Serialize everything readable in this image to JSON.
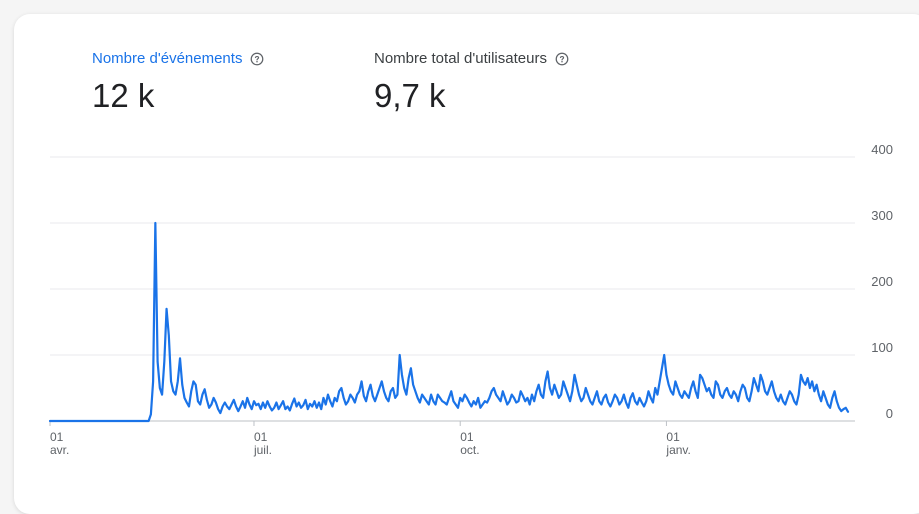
{
  "metrics": [
    {
      "label": "Nombre d'événements",
      "value": "12 k",
      "color": "#1a73e8",
      "help_icon": "help-circle-icon"
    },
    {
      "label": "Nombre total d'utilisateurs",
      "value": "9,7 k",
      "color": "#3c4043",
      "help_icon": "help-circle-icon"
    }
  ],
  "chart_data": {
    "type": "line",
    "ylim": [
      0,
      400
    ],
    "y_ticks": [
      "0",
      "100",
      "200",
      "300",
      "400"
    ],
    "x_ticks": [
      {
        "day": "01",
        "month": "avr."
      },
      {
        "day": "01",
        "month": "juil."
      },
      {
        "day": "01",
        "month": "oct."
      },
      {
        "day": "01",
        "month": "janv."
      }
    ],
    "x_tick_days": [
      0,
      91,
      183,
      275
    ],
    "series": [
      {
        "color": "#1a73e8",
        "points": [
          [
            0,
            0
          ],
          [
            44,
            0
          ],
          [
            45,
            10
          ],
          [
            46,
            60
          ],
          [
            47,
            300
          ],
          [
            48,
            90
          ],
          [
            49,
            50
          ],
          [
            50,
            40
          ],
          [
            51,
            90
          ],
          [
            52,
            170
          ],
          [
            53,
            130
          ],
          [
            54,
            60
          ],
          [
            55,
            45
          ],
          [
            56,
            40
          ],
          [
            57,
            60
          ],
          [
            58,
            95
          ],
          [
            59,
            55
          ],
          [
            60,
            35
          ],
          [
            61,
            28
          ],
          [
            62,
            22
          ],
          [
            63,
            45
          ],
          [
            64,
            60
          ],
          [
            65,
            55
          ],
          [
            66,
            30
          ],
          [
            67,
            25
          ],
          [
            68,
            40
          ],
          [
            69,
            48
          ],
          [
            70,
            32
          ],
          [
            71,
            20
          ],
          [
            72,
            25
          ],
          [
            73,
            35
          ],
          [
            74,
            28
          ],
          [
            75,
            18
          ],
          [
            76,
            12
          ],
          [
            77,
            22
          ],
          [
            78,
            28
          ],
          [
            79,
            22
          ],
          [
            80,
            18
          ],
          [
            81,
            25
          ],
          [
            82,
            32
          ],
          [
            83,
            22
          ],
          [
            84,
            15
          ],
          [
            85,
            22
          ],
          [
            86,
            30
          ],
          [
            87,
            20
          ],
          [
            88,
            35
          ],
          [
            89,
            25
          ],
          [
            90,
            18
          ],
          [
            91,
            30
          ],
          [
            92,
            24
          ],
          [
            93,
            26
          ],
          [
            94,
            18
          ],
          [
            95,
            28
          ],
          [
            96,
            20
          ],
          [
            97,
            30
          ],
          [
            98,
            22
          ],
          [
            99,
            16
          ],
          [
            100,
            20
          ],
          [
            101,
            28
          ],
          [
            102,
            18
          ],
          [
            103,
            24
          ],
          [
            104,
            30
          ],
          [
            105,
            18
          ],
          [
            106,
            22
          ],
          [
            107,
            16
          ],
          [
            108,
            26
          ],
          [
            109,
            34
          ],
          [
            110,
            22
          ],
          [
            111,
            28
          ],
          [
            112,
            20
          ],
          [
            113,
            24
          ],
          [
            114,
            32
          ],
          [
            115,
            18
          ],
          [
            116,
            26
          ],
          [
            117,
            22
          ],
          [
            118,
            30
          ],
          [
            119,
            20
          ],
          [
            120,
            28
          ],
          [
            121,
            18
          ],
          [
            122,
            35
          ],
          [
            123,
            25
          ],
          [
            124,
            40
          ],
          [
            125,
            30
          ],
          [
            126,
            22
          ],
          [
            127,
            35
          ],
          [
            128,
            30
          ],
          [
            129,
            45
          ],
          [
            130,
            50
          ],
          [
            131,
            35
          ],
          [
            132,
            25
          ],
          [
            133,
            30
          ],
          [
            134,
            40
          ],
          [
            135,
            35
          ],
          [
            136,
            28
          ],
          [
            137,
            40
          ],
          [
            138,
            45
          ],
          [
            139,
            60
          ],
          [
            140,
            38
          ],
          [
            141,
            30
          ],
          [
            142,
            45
          ],
          [
            143,
            55
          ],
          [
            144,
            38
          ],
          [
            145,
            30
          ],
          [
            146,
            40
          ],
          [
            147,
            50
          ],
          [
            148,
            60
          ],
          [
            149,
            45
          ],
          [
            150,
            35
          ],
          [
            151,
            30
          ],
          [
            152,
            45
          ],
          [
            153,
            50
          ],
          [
            154,
            35
          ],
          [
            155,
            40
          ],
          [
            156,
            100
          ],
          [
            157,
            70
          ],
          [
            158,
            50
          ],
          [
            159,
            40
          ],
          [
            160,
            65
          ],
          [
            161,
            80
          ],
          [
            162,
            55
          ],
          [
            163,
            45
          ],
          [
            164,
            35
          ],
          [
            165,
            28
          ],
          [
            166,
            40
          ],
          [
            167,
            35
          ],
          [
            168,
            30
          ],
          [
            169,
            25
          ],
          [
            170,
            40
          ],
          [
            171,
            30
          ],
          [
            172,
            25
          ],
          [
            173,
            40
          ],
          [
            174,
            35
          ],
          [
            175,
            30
          ],
          [
            176,
            28
          ],
          [
            177,
            25
          ],
          [
            178,
            35
          ],
          [
            179,
            45
          ],
          [
            180,
            30
          ],
          [
            181,
            25
          ],
          [
            182,
            20
          ],
          [
            183,
            35
          ],
          [
            184,
            30
          ],
          [
            185,
            40
          ],
          [
            186,
            35
          ],
          [
            187,
            28
          ],
          [
            188,
            22
          ],
          [
            189,
            30
          ],
          [
            190,
            25
          ],
          [
            191,
            35
          ],
          [
            192,
            20
          ],
          [
            193,
            25
          ],
          [
            194,
            30
          ],
          [
            195,
            28
          ],
          [
            196,
            35
          ],
          [
            197,
            45
          ],
          [
            198,
            50
          ],
          [
            199,
            40
          ],
          [
            200,
            35
          ],
          [
            201,
            30
          ],
          [
            202,
            45
          ],
          [
            203,
            35
          ],
          [
            204,
            25
          ],
          [
            205,
            30
          ],
          [
            206,
            40
          ],
          [
            207,
            35
          ],
          [
            208,
            28
          ],
          [
            209,
            30
          ],
          [
            210,
            45
          ],
          [
            211,
            38
          ],
          [
            212,
            30
          ],
          [
            213,
            35
          ],
          [
            214,
            25
          ],
          [
            215,
            40
          ],
          [
            216,
            30
          ],
          [
            217,
            45
          ],
          [
            218,
            55
          ],
          [
            219,
            40
          ],
          [
            220,
            35
          ],
          [
            221,
            60
          ],
          [
            222,
            75
          ],
          [
            223,
            50
          ],
          [
            224,
            40
          ],
          [
            225,
            55
          ],
          [
            226,
            45
          ],
          [
            227,
            35
          ],
          [
            228,
            40
          ],
          [
            229,
            60
          ],
          [
            230,
            50
          ],
          [
            231,
            40
          ],
          [
            232,
            30
          ],
          [
            233,
            45
          ],
          [
            234,
            70
          ],
          [
            235,
            55
          ],
          [
            236,
            40
          ],
          [
            237,
            30
          ],
          [
            238,
            35
          ],
          [
            239,
            50
          ],
          [
            240,
            40
          ],
          [
            241,
            30
          ],
          [
            242,
            25
          ],
          [
            243,
            35
          ],
          [
            244,
            45
          ],
          [
            245,
            30
          ],
          [
            246,
            25
          ],
          [
            247,
            35
          ],
          [
            248,
            40
          ],
          [
            249,
            28
          ],
          [
            250,
            22
          ],
          [
            251,
            30
          ],
          [
            252,
            40
          ],
          [
            253,
            35
          ],
          [
            254,
            25
          ],
          [
            255,
            30
          ],
          [
            256,
            40
          ],
          [
            257,
            28
          ],
          [
            258,
            20
          ],
          [
            259,
            35
          ],
          [
            260,
            42
          ],
          [
            261,
            30
          ],
          [
            262,
            25
          ],
          [
            263,
            35
          ],
          [
            264,
            28
          ],
          [
            265,
            22
          ],
          [
            266,
            30
          ],
          [
            267,
            45
          ],
          [
            268,
            35
          ],
          [
            269,
            28
          ],
          [
            270,
            50
          ],
          [
            271,
            40
          ],
          [
            272,
            60
          ],
          [
            273,
            80
          ],
          [
            274,
            100
          ],
          [
            275,
            70
          ],
          [
            276,
            55
          ],
          [
            277,
            45
          ],
          [
            278,
            40
          ],
          [
            279,
            60
          ],
          [
            280,
            50
          ],
          [
            281,
            40
          ],
          [
            282,
            35
          ],
          [
            283,
            45
          ],
          [
            284,
            40
          ],
          [
            285,
            35
          ],
          [
            286,
            50
          ],
          [
            287,
            60
          ],
          [
            288,
            45
          ],
          [
            289,
            35
          ],
          [
            290,
            70
          ],
          [
            291,
            65
          ],
          [
            292,
            55
          ],
          [
            293,
            45
          ],
          [
            294,
            50
          ],
          [
            295,
            40
          ],
          [
            296,
            35
          ],
          [
            297,
            60
          ],
          [
            298,
            55
          ],
          [
            299,
            40
          ],
          [
            300,
            35
          ],
          [
            301,
            45
          ],
          [
            302,
            50
          ],
          [
            303,
            40
          ],
          [
            304,
            35
          ],
          [
            305,
            45
          ],
          [
            306,
            40
          ],
          [
            307,
            30
          ],
          [
            308,
            45
          ],
          [
            309,
            55
          ],
          [
            310,
            50
          ],
          [
            311,
            35
          ],
          [
            312,
            30
          ],
          [
            313,
            45
          ],
          [
            314,
            65
          ],
          [
            315,
            55
          ],
          [
            316,
            45
          ],
          [
            317,
            70
          ],
          [
            318,
            60
          ],
          [
            319,
            45
          ],
          [
            320,
            40
          ],
          [
            321,
            50
          ],
          [
            322,
            60
          ],
          [
            323,
            45
          ],
          [
            324,
            35
          ],
          [
            325,
            30
          ],
          [
            326,
            40
          ],
          [
            327,
            30
          ],
          [
            328,
            25
          ],
          [
            329,
            35
          ],
          [
            330,
            45
          ],
          [
            331,
            40
          ],
          [
            332,
            30
          ],
          [
            333,
            25
          ],
          [
            334,
            40
          ],
          [
            335,
            70
          ],
          [
            336,
            60
          ],
          [
            337,
            55
          ],
          [
            338,
            65
          ],
          [
            339,
            50
          ],
          [
            340,
            60
          ],
          [
            341,
            45
          ],
          [
            342,
            55
          ],
          [
            343,
            40
          ],
          [
            344,
            30
          ],
          [
            345,
            45
          ],
          [
            346,
            35
          ],
          [
            347,
            25
          ],
          [
            348,
            20
          ],
          [
            349,
            35
          ],
          [
            350,
            45
          ],
          [
            351,
            30
          ],
          [
            352,
            20
          ],
          [
            353,
            15
          ],
          [
            354,
            18
          ],
          [
            355,
            20
          ],
          [
            356,
            14
          ]
        ]
      }
    ]
  }
}
